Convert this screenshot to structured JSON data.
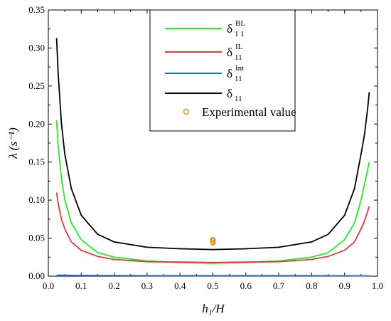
{
  "chart_data": {
    "type": "line",
    "xlabel": "h₁/H",
    "ylabel": "λ (s⁻¹)",
    "xlim": [
      0.0,
      1.0
    ],
    "ylim": [
      0.0,
      0.35
    ],
    "x_ticks": [
      "0.0",
      "0.1",
      "0.2",
      "0.3",
      "0.4",
      "0.5",
      "0.6",
      "0.7",
      "0.8",
      "0.9",
      "1.0"
    ],
    "y_ticks": [
      "0.00",
      "0.05",
      "0.10",
      "0.15",
      "0.20",
      "0.25",
      "0.30",
      "0.35"
    ],
    "legend_position": "top-center",
    "grid": false,
    "series": [
      {
        "name": "δ₁₁^BL",
        "legend_base": "δ",
        "legend_sup": "BL",
        "legend_sub": "1 1",
        "color": "#22ee22",
        "x": [
          0.025,
          0.03,
          0.04,
          0.05,
          0.07,
          0.1,
          0.15,
          0.2,
          0.3,
          0.4,
          0.5,
          0.6,
          0.7,
          0.8,
          0.85,
          0.9,
          0.93,
          0.95,
          0.96,
          0.97,
          0.975
        ],
        "y": [
          0.205,
          0.17,
          0.128,
          0.1,
          0.07,
          0.048,
          0.031,
          0.025,
          0.02,
          0.018,
          0.017,
          0.018,
          0.02,
          0.025,
          0.031,
          0.048,
          0.07,
          0.1,
          0.12,
          0.14,
          0.15
        ]
      },
      {
        "name": "δ₁₁^IL",
        "legend_base": "δ",
        "legend_sup": "IL",
        "legend_sub": "11",
        "color": "#e03c3c",
        "x": [
          0.025,
          0.03,
          0.04,
          0.05,
          0.07,
          0.1,
          0.15,
          0.2,
          0.3,
          0.4,
          0.5,
          0.6,
          0.7,
          0.8,
          0.85,
          0.9,
          0.93,
          0.95,
          0.96,
          0.97,
          0.975
        ],
        "y": [
          0.11,
          0.095,
          0.075,
          0.062,
          0.045,
          0.034,
          0.026,
          0.022,
          0.019,
          0.0185,
          0.018,
          0.0185,
          0.019,
          0.022,
          0.026,
          0.034,
          0.045,
          0.062,
          0.072,
          0.085,
          0.092
        ]
      },
      {
        "name": "δ₁₁^Int",
        "legend_base": "δ",
        "legend_sup": "Int",
        "legend_sub": "11",
        "color": "#1f6fd0",
        "x": [
          0.025,
          0.1,
          0.2,
          0.3,
          0.4,
          0.5,
          0.6,
          0.7,
          0.8,
          0.9,
          0.975
        ],
        "y": [
          0.0012,
          0.0009,
          0.0008,
          0.0007,
          0.0007,
          0.0007,
          0.0007,
          0.0007,
          0.0007,
          0.0006,
          0.0005
        ]
      },
      {
        "name": "δ₁₁",
        "legend_base": "δ",
        "legend_sup": "",
        "legend_sub": "11",
        "color": "#000000",
        "x": [
          0.025,
          0.03,
          0.04,
          0.05,
          0.07,
          0.1,
          0.15,
          0.2,
          0.3,
          0.4,
          0.5,
          0.6,
          0.7,
          0.8,
          0.85,
          0.9,
          0.93,
          0.95,
          0.96,
          0.97,
          0.975
        ],
        "y": [
          0.313,
          0.265,
          0.2,
          0.16,
          0.115,
          0.08,
          0.055,
          0.045,
          0.038,
          0.036,
          0.035,
          0.036,
          0.038,
          0.045,
          0.055,
          0.08,
          0.115,
          0.16,
          0.185,
          0.22,
          0.242
        ]
      }
    ],
    "scatter": {
      "name": "Experimental value",
      "color": "#e08a10",
      "x": [
        0.5,
        0.5,
        0.5
      ],
      "y": [
        0.048,
        0.046,
        0.044
      ]
    }
  }
}
